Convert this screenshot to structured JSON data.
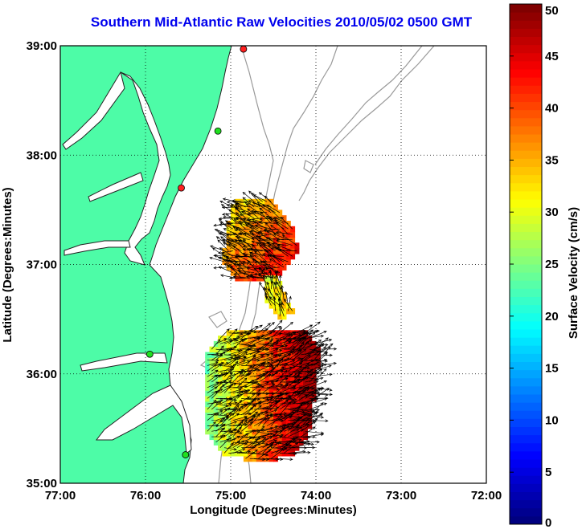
{
  "title": "Southern Mid-Atlantic Raw Velocities 2010/05/02 0500 GMT",
  "xlabel": "Longitude (Degrees:Minutes)",
  "ylabel": "Latitude (Degrees:Minutes)",
  "colorbar_label": "Surface Velocity (cm/s)",
  "map": {
    "lon_range": [
      -77.0,
      -72.0
    ],
    "lat_range": [
      35.0,
      39.0
    ],
    "x_ticks": [
      {
        "value": -77,
        "label": "77:00"
      },
      {
        "value": -76,
        "label": "76:00"
      },
      {
        "value": -75,
        "label": "75:00"
      },
      {
        "value": -74,
        "label": "74:00"
      },
      {
        "value": -73,
        "label": "73:00"
      },
      {
        "value": -72,
        "label": "72:00"
      }
    ],
    "y_ticks": [
      {
        "value": 35,
        "label": "35:00"
      },
      {
        "value": 36,
        "label": "36:00"
      },
      {
        "value": 37,
        "label": "37:00"
      },
      {
        "value": 38,
        "label": "38:00"
      },
      {
        "value": 39,
        "label": "39:00"
      }
    ],
    "grid": "dotted",
    "land_color": "#4dfca7",
    "ocean_color": "#ffffff",
    "bathymetry_color": "#999999",
    "arrow_color": "#000000"
  },
  "colorbar": {
    "range": [
      0,
      50
    ],
    "ticks": [
      0,
      5,
      10,
      15,
      20,
      25,
      30,
      35,
      40,
      45,
      50
    ],
    "colormap": "jet",
    "placement": "right"
  },
  "stations": [
    {
      "lon": -74.85,
      "lat": 38.97,
      "status": "red"
    },
    {
      "lon": -75.15,
      "lat": 38.22,
      "status": "green"
    },
    {
      "lon": -75.58,
      "lat": 37.7,
      "status": "red"
    },
    {
      "lon": -75.95,
      "lat": 36.18,
      "status": "green"
    },
    {
      "lon": -75.53,
      "lat": 35.26,
      "status": "green"
    }
  ],
  "velocity_regions": [
    {
      "name": "north",
      "polygon": [
        [
          -74.95,
          37.6
        ],
        [
          -74.55,
          37.6
        ],
        [
          -74.25,
          37.3
        ],
        [
          -74.2,
          37.1
        ],
        [
          -74.5,
          36.85
        ],
        [
          -74.9,
          36.85
        ],
        [
          -75.1,
          37.0
        ],
        [
          -75.05,
          37.3
        ]
      ],
      "speed_low": 30,
      "speed_high": 47,
      "flow_dir": 160
    },
    {
      "name": "channel",
      "polygon": [
        [
          -74.6,
          36.88
        ],
        [
          -74.45,
          36.88
        ],
        [
          -74.25,
          36.55
        ],
        [
          -74.4,
          36.5
        ],
        [
          -74.6,
          36.7
        ]
      ],
      "speed_low": 30,
      "speed_high": 35,
      "flow_dir": 110
    },
    {
      "name": "south",
      "polygon": [
        [
          -75.0,
          36.42
        ],
        [
          -74.15,
          36.4
        ],
        [
          -73.95,
          36.2
        ],
        [
          -74.0,
          35.9
        ],
        [
          -74.1,
          35.4
        ],
        [
          -74.3,
          35.25
        ],
        [
          -74.6,
          35.2
        ],
        [
          -75.1,
          35.25
        ],
        [
          -75.3,
          35.5
        ],
        [
          -75.3,
          36.2
        ]
      ],
      "speed_low": 25,
      "speed_high": 48,
      "flow_dir": 20
    }
  ]
}
